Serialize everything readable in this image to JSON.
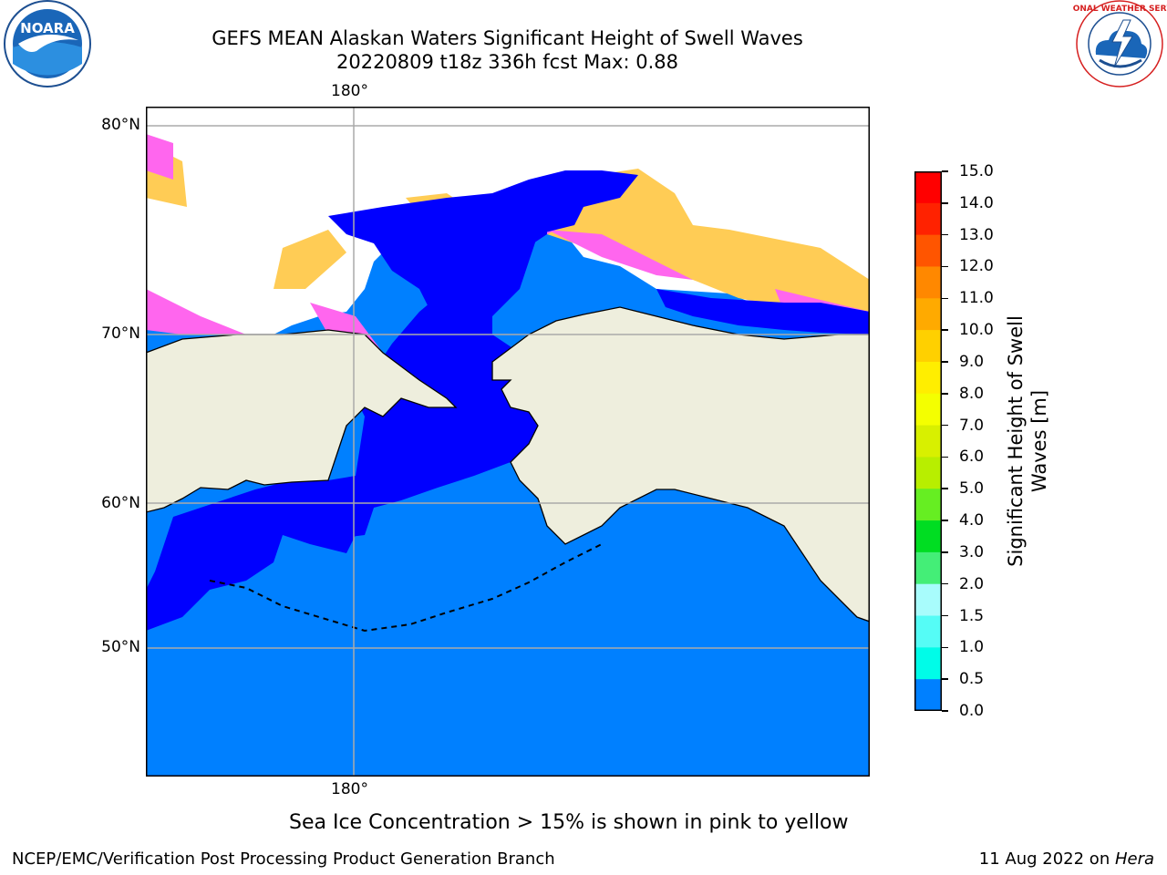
{
  "header": {
    "title_line1": "GEFS MEAN Alaskan Waters Significant Height of Swell Waves",
    "title_line2": "20220809 t18z 336h fcst   Max: 0.88"
  },
  "logos": {
    "left": {
      "name": "NOARA",
      "ring_text": "NATIONAL OCEANIC AND ATMOSPHERIC ADMINISTRATION · U.S. DEPARTMENT OF COMMERCE"
    },
    "right": {
      "ring_text": "NATIONAL WEATHER SERVICE"
    }
  },
  "map": {
    "lon_label_top": "180°",
    "lon_label_bottom": "180°",
    "lat_labels": [
      "80°N",
      "70°N",
      "60°N",
      "50°N"
    ],
    "colors": {
      "ocean_low": "#0000ff",
      "ocean_mid": "#0080ff",
      "land": "#eeeedd",
      "ice_edge": "#ff44ff",
      "ice_pink": "#ff99ee",
      "ice_orange": "#ffbb55",
      "ice_yellow": "#ffee44"
    }
  },
  "colorbar": {
    "label": "Significant Height of Swell Waves [m]",
    "ticks": [
      "15.0",
      "14.0",
      "13.0",
      "12.0",
      "11.0",
      "10.0",
      "9.0",
      "8.0",
      "7.0",
      "6.0",
      "5.0",
      "4.0",
      "3.0",
      "2.0",
      "1.5",
      "1.0",
      "0.5",
      "0.0"
    ],
    "colors": [
      "#ff0000",
      "#ff2200",
      "#ff5500",
      "#ff8800",
      "#ffaa00",
      "#ffd000",
      "#ffee00",
      "#f4ff00",
      "#d8f000",
      "#b8ee00",
      "#66ee22",
      "#00dd22",
      "#44ee77",
      "#a8fcfc",
      "#55fcf6",
      "#00fce8",
      "#0080ff",
      "#0000ff"
    ]
  },
  "footer": {
    "note": "Sea Ice Concentration > 15% is shown in pink to yellow",
    "left": "NCEP/EMC/Verification Post Processing Product Generation Branch",
    "right_prefix": "11 Aug 2022 on ",
    "right_host": "Hera"
  }
}
